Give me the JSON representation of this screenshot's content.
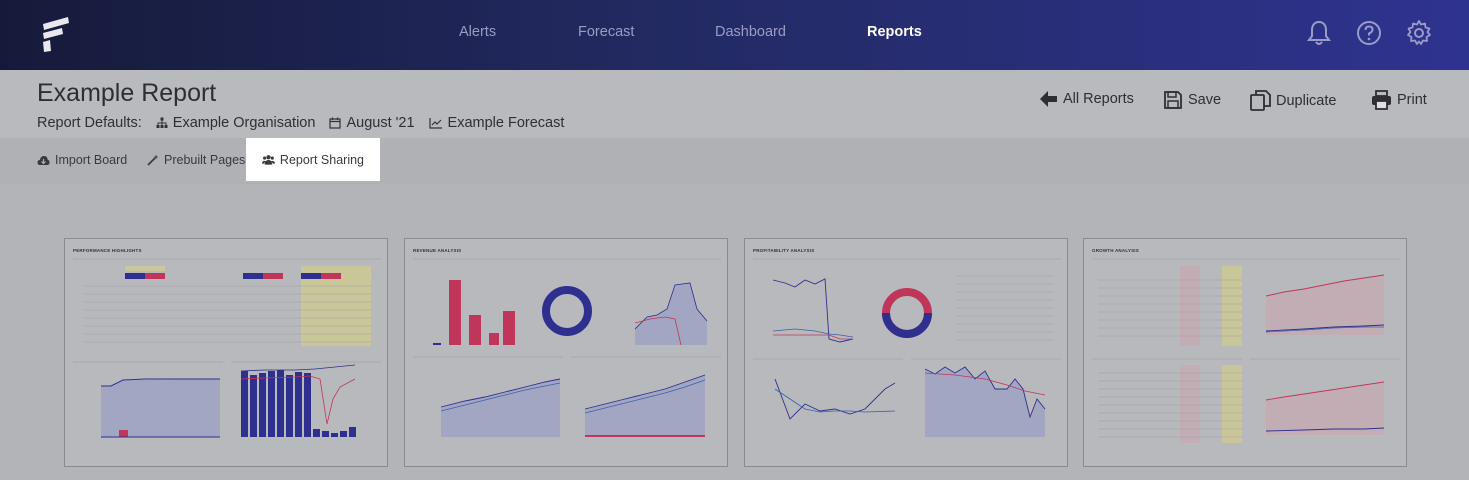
{
  "nav": {
    "items": [
      {
        "label": "Alerts",
        "active": false
      },
      {
        "label": "Forecast",
        "active": false
      },
      {
        "label": "Dashboard",
        "active": false
      },
      {
        "label": "Reports",
        "active": true
      }
    ],
    "icons": [
      "bell-icon",
      "help-icon",
      "gear-icon"
    ]
  },
  "report": {
    "title": "Example Report",
    "defaults_label": "Report Defaults:",
    "organisation": "Example Organisation",
    "period": "August '21",
    "forecast": "Example Forecast"
  },
  "actions": {
    "all_reports": "All Reports",
    "save": "Save",
    "duplicate": "Duplicate",
    "print": "Print"
  },
  "toolbar": {
    "import_board": "Import Board",
    "prebuilt_pages": "Prebuilt Pages",
    "report_sharing": "Report Sharing"
  },
  "pages": [
    {
      "title": "PERFORMANCE HIGHLIGHTS"
    },
    {
      "title": "REVENUE ANALYSIS"
    },
    {
      "title": "PROFITABILITY ANALYSIS"
    },
    {
      "title": "GROWTH ANALYSIS"
    }
  ],
  "colors": {
    "nav_start": "#161a3a",
    "nav_end": "#2f3390",
    "series_blue": "#2e2f8f",
    "series_red": "#c0365a",
    "highlight": "#ffffff"
  }
}
